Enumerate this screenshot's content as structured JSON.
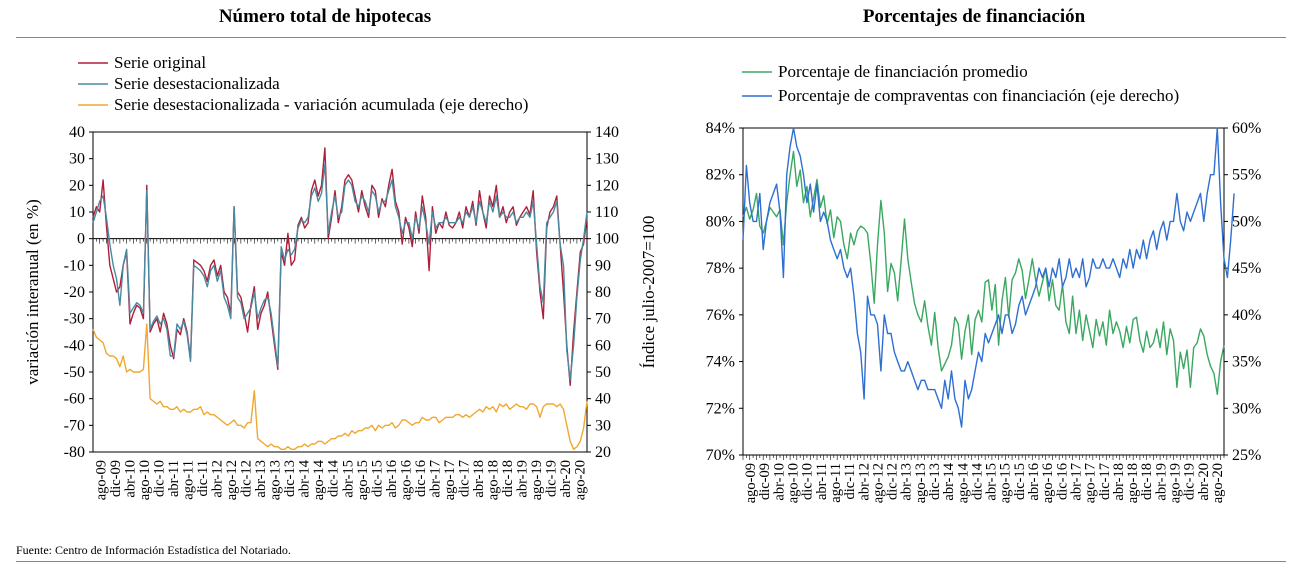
{
  "titles": {
    "left": "Número total de hipotecas",
    "right": "Porcentajes de financiación"
  },
  "source": "Fuente: Centro de Información Estadística del Notariado.",
  "chart_data": [
    {
      "type": "line",
      "title": "Número total de hipotecas",
      "ylabel": "variación interanual (en %)",
      "y2label": "Índice julio-2007=100",
      "ylim": [
        -80,
        40
      ],
      "y2lim": [
        20,
        140
      ],
      "yticks": [
        "40",
        "30",
        "20",
        "10",
        "0",
        "-10",
        "-20",
        "-30",
        "-40",
        "-50",
        "-60",
        "-70",
        "-80"
      ],
      "y2ticks": [
        "140",
        "130",
        "120",
        "110",
        "100",
        "90",
        "80",
        "70",
        "60",
        "50",
        "40",
        "30",
        "20"
      ],
      "xticks": [
        "ago-09",
        "dic-09",
        "abr-10",
        "ago-10",
        "dic-10",
        "abr-11",
        "ago-11",
        "dic-11",
        "abr-12",
        "ago-12",
        "dic-12",
        "abr-13",
        "ago-13",
        "dic-13",
        "abr-14",
        "ago-14",
        "dic-14",
        "abr-15",
        "ago-15",
        "dic-15",
        "abr-16",
        "ago-16",
        "dic-16",
        "abr-17",
        "ago-17",
        "dic-17",
        "abr-18",
        "ago-18",
        "dic-18",
        "abr-19",
        "ago-19",
        "dic-19",
        "abr-20",
        "ago-20"
      ],
      "grid": false,
      "legend": "top-left",
      "colors": {
        "original": "#b01f3a",
        "desest": "#4a8aa0",
        "acum": "#f0a830"
      },
      "series": [
        {
          "name": "Serie original",
          "axis": "left",
          "values": [
            8,
            12,
            10,
            22,
            5,
            -10,
            -15,
            -20,
            -18,
            -10,
            -5,
            -32,
            -28,
            -25,
            -26,
            -30,
            20,
            -35,
            -32,
            -30,
            -35,
            -28,
            -32,
            -40,
            -45,
            -34,
            -36,
            -30,
            -35,
            -45,
            -8,
            -9,
            -10,
            -12,
            -16,
            -10,
            -8,
            -14,
            -10,
            -20,
            -22,
            -28,
            12,
            -20,
            -22,
            -28,
            -35,
            -25,
            -18,
            -34,
            -28,
            -25,
            -20,
            -30,
            -40,
            -49,
            -5,
            -10,
            2,
            -10,
            -8,
            5,
            8,
            4,
            6,
            18,
            22,
            16,
            20,
            34,
            0,
            8,
            18,
            6,
            12,
            22,
            24,
            22,
            16,
            10,
            18,
            12,
            8,
            20,
            18,
            8,
            15,
            12,
            20,
            26,
            14,
            10,
            -2,
            8,
            4,
            -3,
            10,
            2,
            16,
            8,
            -12,
            12,
            2,
            6,
            4,
            10,
            5,
            4,
            6,
            10,
            4,
            12,
            8,
            14,
            5,
            18,
            10,
            4,
            16,
            12,
            20,
            8,
            12,
            6,
            10,
            12,
            5,
            8,
            10,
            12,
            9,
            18,
            -5,
            -20,
            -30,
            4,
            10,
            12,
            16,
            -2,
            -20,
            -40,
            -55,
            -35,
            -20,
            -5,
            -2,
            8
          ]
        },
        {
          "name": "Serie desestacionalizada",
          "axis": "left",
          "values": [
            6,
            10,
            14,
            16,
            8,
            -2,
            -10,
            -15,
            -25,
            -10,
            -4,
            -28,
            -26,
            -24,
            -25,
            -28,
            18,
            -34,
            -31,
            -29,
            -32,
            -30,
            -34,
            -44,
            -44,
            -32,
            -34,
            -31,
            -36,
            -46,
            -10,
            -11,
            -12,
            -14,
            -18,
            -12,
            -10,
            -16,
            -12,
            -22,
            -25,
            -30,
            12,
            -22,
            -24,
            -30,
            -28,
            -26,
            -20,
            -30,
            -26,
            -23,
            -22,
            -28,
            -38,
            -48,
            -3,
            -8,
            -4,
            -6,
            -4,
            4,
            7,
            6,
            8,
            16,
            19,
            14,
            17,
            28,
            2,
            10,
            16,
            8,
            10,
            20,
            22,
            20,
            14,
            12,
            16,
            14,
            10,
            18,
            16,
            10,
            14,
            14,
            18,
            22,
            12,
            8,
            2,
            6,
            6,
            0,
            8,
            4,
            12,
            6,
            -2,
            10,
            4,
            6,
            6,
            8,
            6,
            6,
            6,
            8,
            6,
            10,
            8,
            12,
            6,
            14,
            10,
            6,
            14,
            10,
            16,
            8,
            10,
            8,
            8,
            10,
            6,
            8,
            8,
            10,
            8,
            14,
            -2,
            -18,
            -24,
            6,
            8,
            10,
            14,
            -2,
            -10,
            -42,
            -53,
            -40,
            -22,
            -8,
            0,
            10
          ]
        },
        {
          "name": "Serie desestacionalizada - variación acumulada (eje derecho)",
          "axis": "right",
          "values": [
            66,
            63,
            62,
            61,
            57,
            56,
            56,
            55,
            52,
            56,
            50,
            51,
            50,
            50,
            50,
            51,
            68,
            40,
            39,
            38,
            39,
            37,
            37,
            36,
            36,
            37,
            35,
            36,
            35,
            35,
            36,
            36,
            37,
            34,
            35,
            34,
            34,
            33,
            32,
            31,
            30,
            31,
            32,
            30,
            30,
            29,
            31,
            31,
            43,
            25,
            24,
            23,
            22,
            23,
            22,
            22,
            21,
            21,
            22,
            21,
            21,
            22,
            22,
            23,
            22,
            23,
            23,
            24,
            24,
            23,
            24,
            25,
            25,
            26,
            26,
            27,
            26,
            28,
            27,
            28,
            28,
            29,
            29,
            30,
            28,
            30,
            29,
            30,
            30,
            31,
            29,
            30,
            32,
            32,
            31,
            30,
            31,
            31,
            33,
            32,
            32,
            33,
            33,
            31,
            32,
            33,
            33,
            33,
            34,
            34,
            33,
            34,
            33,
            34,
            35,
            36,
            35,
            37,
            36,
            37,
            35,
            38,
            37,
            38,
            36,
            37,
            38,
            37,
            37,
            36,
            38,
            38,
            37,
            33,
            37,
            38,
            38,
            38,
            37,
            38,
            36,
            30,
            24,
            21,
            22,
            24,
            29,
            39
          ]
        }
      ]
    },
    {
      "type": "line",
      "title": "Porcentajes de financiación",
      "ylim": [
        70,
        84
      ],
      "y2lim": [
        25,
        60
      ],
      "yticks": [
        "84%",
        "82%",
        "80%",
        "78%",
        "76%",
        "74%",
        "72%",
        "70%"
      ],
      "y2ticks": [
        "60%",
        "55%",
        "50%",
        "45%",
        "40%",
        "35%",
        "30%",
        "25%"
      ],
      "xticks": [
        "ago-09",
        "dic-09",
        "abr-10",
        "ago-10",
        "dic-10",
        "abr-11",
        "ago-11",
        "dic-11",
        "abr-12",
        "ago-12",
        "dic-12",
        "abr-13",
        "ago-13",
        "dic-13",
        "abr-14",
        "ago-14",
        "dic-14",
        "abr-15",
        "ago-15",
        "dic-15",
        "abr-16",
        "ago-16",
        "dic-16",
        "abr-17",
        "ago-17",
        "dic-17",
        "abr-18",
        "ago-18",
        "dic-18",
        "abr-19",
        "ago-19",
        "dic-19",
        "abr-20",
        "ago-20"
      ],
      "grid": false,
      "legend": "top-left",
      "colors": {
        "promedio": "#3aa860",
        "compraventas": "#2e6fd0"
      },
      "series": [
        {
          "name": "Porcentaje de financiación promedio",
          "axis": "left",
          "values": [
            80.2,
            80.6,
            80.1,
            80.5,
            81.2,
            79.8,
            79.5,
            80.0,
            80.6,
            80.4,
            80.2,
            80.5,
            79.0,
            80.8,
            82.0,
            83.0,
            81.5,
            82.2,
            80.8,
            81.5,
            80.2,
            81.0,
            81.8,
            80.6,
            81.1,
            79.9,
            80.5,
            79.3,
            80.2,
            80.0,
            79.0,
            78.4,
            79.5,
            79.0,
            79.6,
            79.8,
            79.7,
            79.5,
            78.2,
            76.5,
            79.0,
            80.9,
            79.5,
            77.0,
            78.2,
            77.8,
            76.6,
            78.3,
            80.1,
            78.4,
            77.4,
            76.5,
            76.0,
            75.7,
            76.6,
            75.5,
            74.7,
            76.1,
            74.6,
            73.6,
            73.9,
            74.2,
            74.7,
            75.9,
            75.6,
            74.1,
            75.3,
            76.0,
            74.3,
            75.8,
            76.2,
            75.7,
            77.4,
            77.5,
            76.2,
            77.3,
            74.7,
            76.6,
            77.6,
            75.9,
            77.5,
            77.8,
            78.4,
            77.9,
            76.7,
            77.5,
            78.4,
            77.5,
            76.8,
            77.4,
            78.0,
            76.6,
            77.5,
            76.4,
            76.2,
            77.3,
            75.7,
            75.2,
            76.8,
            75.2,
            76.2,
            74.9,
            76.0,
            75.3,
            74.6,
            75.8,
            75.1,
            75.7,
            74.7,
            76.2,
            75.2,
            75.7,
            75.3,
            74.6,
            75.5,
            74.8,
            75.8,
            75.9,
            74.9,
            74.4,
            75.3,
            74.6,
            74.8,
            75.4,
            74.6,
            75.7,
            74.3,
            75.4,
            74.9,
            72.9,
            74.4,
            73.7,
            74.5,
            72.9,
            74.6,
            74.8,
            75.4,
            75.1,
            74.3,
            73.8,
            73.5,
            72.6,
            74.0,
            74.7
          ]
        },
        {
          "name": "Porcentaje de compraventas con financiación (eje derecho)",
          "axis": "right",
          "values": [
            48,
            56,
            52,
            50,
            50,
            53,
            47,
            50,
            52,
            53,
            54,
            51,
            44,
            55,
            58,
            60,
            58,
            57,
            55,
            52,
            54,
            51,
            54,
            50,
            51,
            50,
            48,
            47,
            46,
            47,
            45,
            44,
            45,
            42,
            38,
            36,
            31,
            42,
            40,
            40,
            39,
            34,
            40,
            38,
            38,
            36,
            35,
            34,
            34,
            35,
            34,
            33,
            32,
            33,
            33,
            32,
            32,
            32,
            31,
            30,
            33,
            31,
            34,
            31,
            30,
            28,
            33,
            31,
            32,
            34,
            36,
            35,
            38,
            37,
            38,
            39,
            40,
            38,
            40,
            40,
            38,
            39,
            41,
            42,
            40,
            41,
            42,
            43,
            45,
            44,
            45,
            43,
            45,
            44,
            46,
            43,
            44,
            46,
            44,
            45,
            44,
            46,
            43,
            44,
            46,
            45,
            45,
            46,
            45,
            45,
            46,
            45,
            44,
            46,
            45,
            47,
            45,
            47,
            46,
            48,
            46,
            48,
            49,
            47,
            49,
            50,
            48,
            50,
            50,
            53,
            50,
            49,
            51,
            50,
            51,
            52,
            53,
            50,
            53,
            55,
            55,
            60,
            52,
            46,
            44,
            48,
            53
          ]
        }
      ]
    }
  ]
}
